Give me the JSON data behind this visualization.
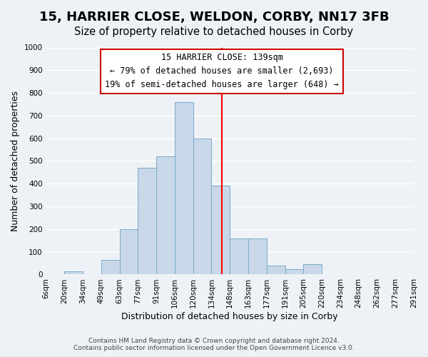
{
  "title": "15, HARRIER CLOSE, WELDON, CORBY, NN17 3FB",
  "subtitle": "Size of property relative to detached houses in Corby",
  "xlabel": "Distribution of detached houses by size in Corby",
  "ylabel": "Number of detached properties",
  "footer_line1": "Contains HM Land Registry data © Crown copyright and database right 2024.",
  "footer_line2": "Contains public sector information licensed under the Open Government Licence v3.0.",
  "bin_edges": [
    "6sqm",
    "20sqm",
    "34sqm",
    "49sqm",
    "63sqm",
    "77sqm",
    "91sqm",
    "106sqm",
    "120sqm",
    "134sqm",
    "148sqm",
    "163sqm",
    "177sqm",
    "191sqm",
    "205sqm",
    "220sqm",
    "234sqm",
    "248sqm",
    "262sqm",
    "277sqm",
    "291sqm"
  ],
  "bar_heights": [
    0,
    15,
    0,
    65,
    200,
    470,
    520,
    760,
    600,
    390,
    160,
    160,
    40,
    25,
    45,
    0,
    0,
    0,
    0,
    0
  ],
  "bar_color": "#c8d8e8",
  "bar_edge_color": "#7aaac8",
  "property_label": "15 HARRIER CLOSE: 139sqm",
  "annotation_line1": "← 79% of detached houses are smaller (2,693)",
  "annotation_line2": "19% of semi-detached houses are larger (648) →",
  "vline_color": "red",
  "vline_x": 9.57,
  "ylim": [
    0,
    1000
  ],
  "yticks": [
    0,
    100,
    200,
    300,
    400,
    500,
    600,
    700,
    800,
    900,
    1000
  ],
  "background_color": "#eef2f7",
  "plot_bg_color": "#eef2f7",
  "box_facecolor": "white",
  "box_edgecolor": "#cc0000",
  "grid_color": "white",
  "title_fontsize": 13,
  "subtitle_fontsize": 10.5,
  "label_fontsize": 9,
  "tick_fontsize": 7.5,
  "annotation_fontsize": 8.5,
  "footer_fontsize": 6.5
}
